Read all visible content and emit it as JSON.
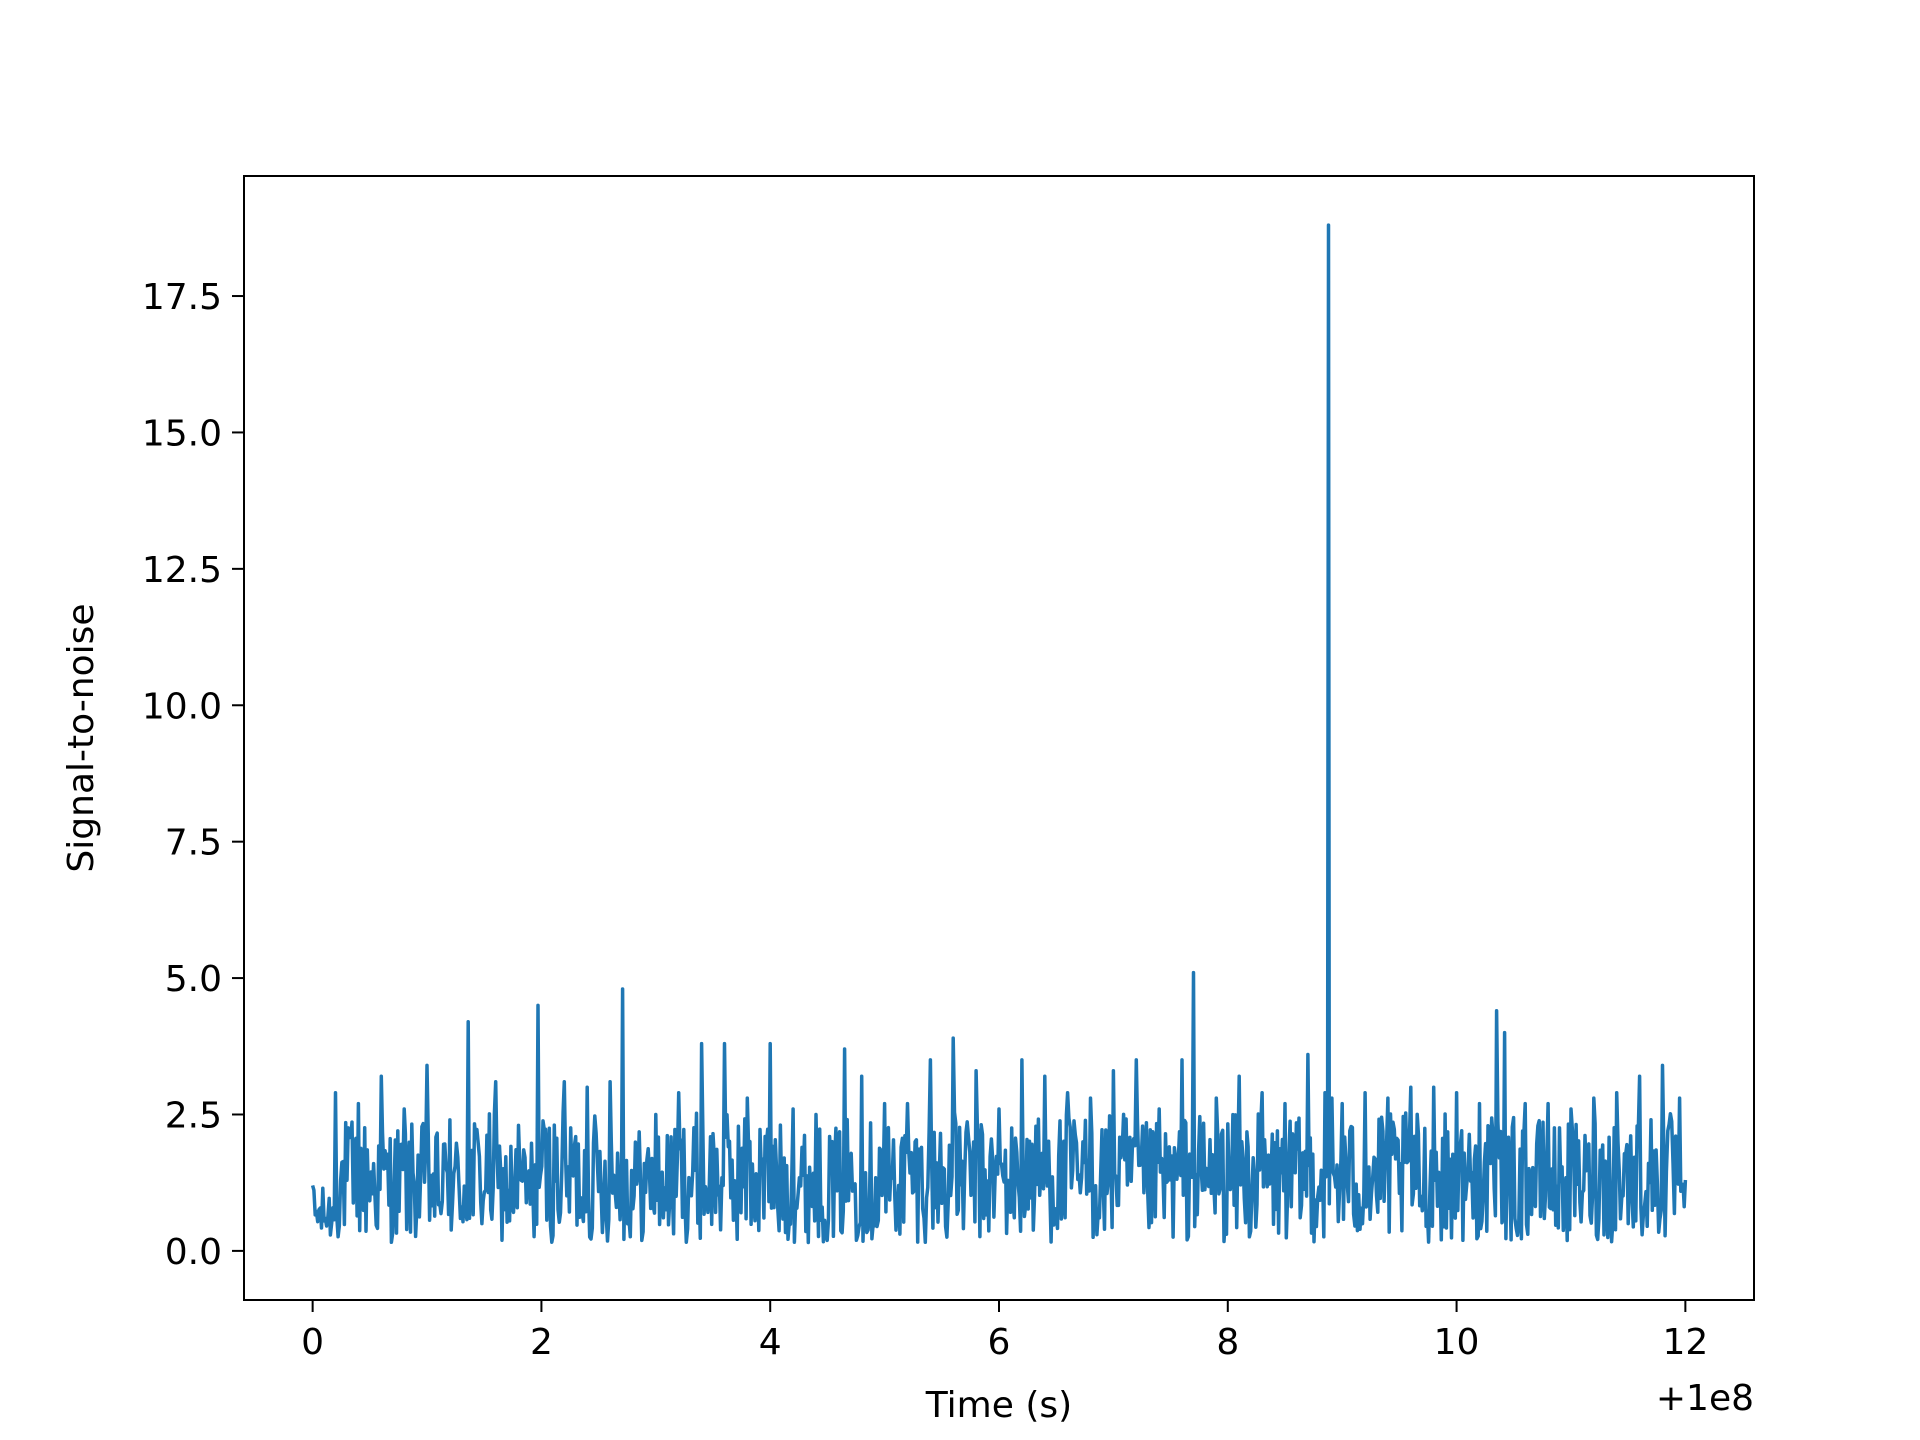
{
  "chart_data": {
    "type": "line",
    "title": "",
    "xlabel": "Time (s)",
    "ylabel": "Signal-to-noise",
    "x_offset_label": "+1e8",
    "xlim": [
      -0.6,
      12.6
    ],
    "ylim": [
      -0.9,
      19.7
    ],
    "xticks": [
      0,
      2,
      4,
      6,
      8,
      10,
      12
    ],
    "yticks": [
      0.0,
      2.5,
      5.0,
      7.5,
      10.0,
      12.5,
      15.0,
      17.5
    ],
    "xtick_labels": [
      "0",
      "2",
      "4",
      "6",
      "8",
      "10",
      "12"
    ],
    "ytick_labels": [
      "0.0",
      "2.5",
      "5.0",
      "7.5",
      "10.0",
      "12.5",
      "15.0",
      "17.5"
    ],
    "grid": false,
    "legend": "none",
    "color": "#1f77b4",
    "series": [
      {
        "x": [
          0.0,
          0.2,
          0.4,
          0.6,
          0.8,
          1.0,
          1.2,
          1.36,
          1.6,
          1.8,
          1.97,
          2.2,
          2.4,
          2.6,
          2.71,
          3.0,
          3.2,
          3.4,
          3.6,
          3.8,
          4.0,
          4.2,
          4.4,
          4.65,
          4.8,
          5.0,
          5.2,
          5.4,
          5.6,
          5.8,
          6.0,
          6.2,
          6.4,
          6.6,
          6.8,
          7.0,
          7.2,
          7.4,
          7.6,
          7.7,
          7.9,
          8.1,
          8.3,
          8.5,
          8.7,
          8.85,
          8.88,
          8.91,
          9.0,
          9.2,
          9.4,
          9.6,
          9.8,
          10.0,
          10.2,
          10.35,
          10.42,
          10.6,
          10.8,
          11.0,
          11.2,
          11.4,
          11.6,
          11.8,
          11.95,
          12.0
        ],
        "y": [
          1.2,
          2.9,
          2.7,
          3.2,
          2.6,
          3.4,
          2.4,
          4.2,
          3.1,
          2.3,
          4.5,
          3.1,
          3.0,
          3.1,
          4.8,
          2.5,
          2.9,
          3.8,
          3.8,
          2.8,
          3.8,
          2.6,
          2.5,
          3.7,
          3.2,
          2.7,
          2.7,
          3.5,
          3.9,
          3.3,
          2.6,
          3.5,
          3.2,
          2.9,
          2.8,
          3.3,
          3.5,
          2.6,
          3.5,
          5.1,
          2.8,
          3.2,
          2.9,
          2.7,
          3.6,
          2.9,
          18.8,
          2.8,
          2.7,
          2.9,
          2.8,
          3.0,
          3.0,
          2.9,
          2.7,
          4.4,
          4.0,
          2.7,
          2.7,
          2.6,
          2.8,
          2.9,
          3.2,
          3.4,
          2.8,
          1.3
        ]
      }
    ]
  }
}
